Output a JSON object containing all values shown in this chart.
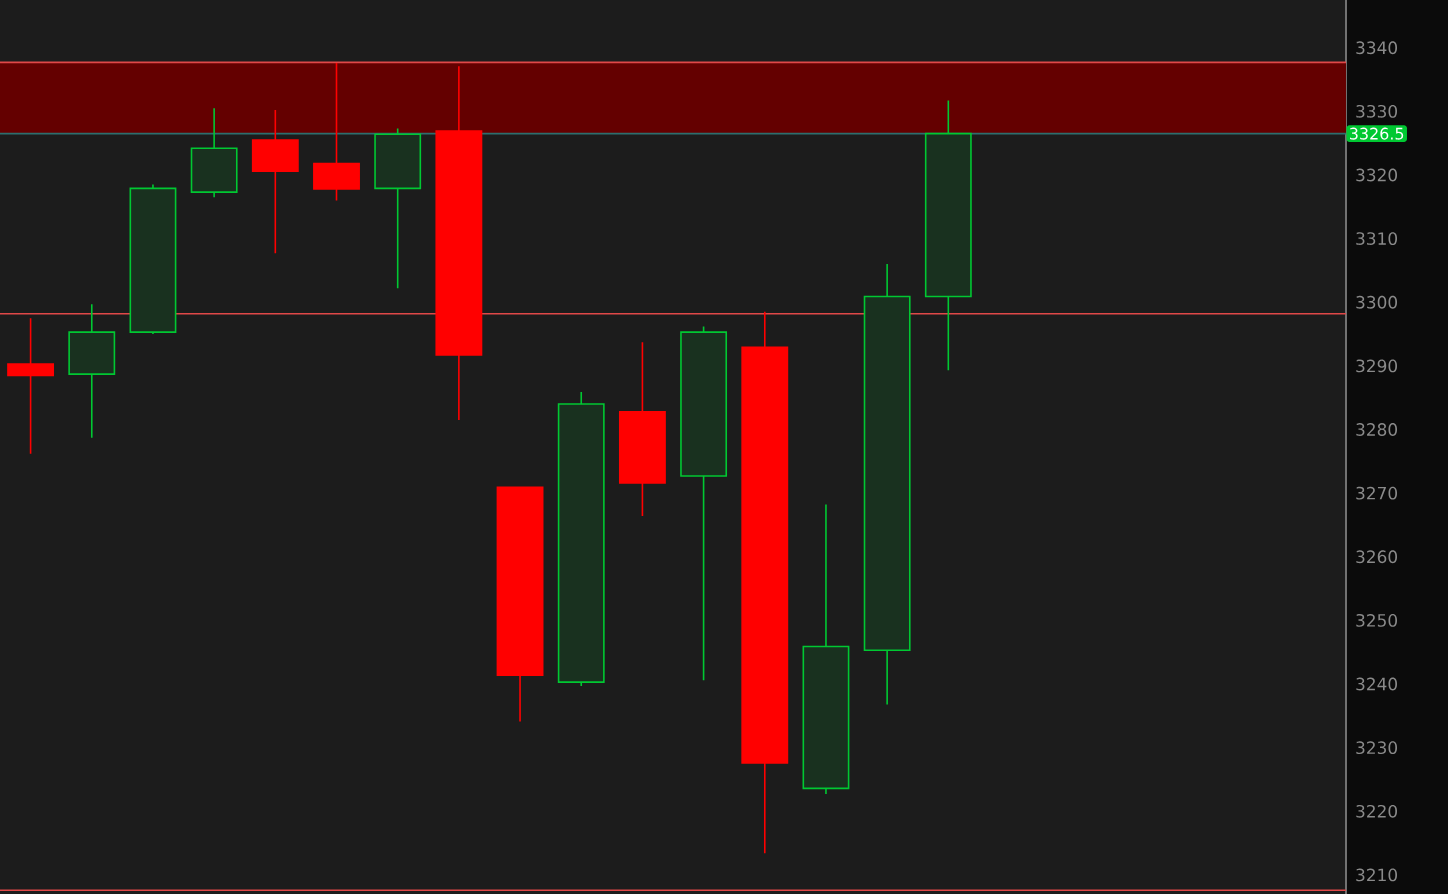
{
  "chart_data": {
    "type": "candlestick",
    "categories": [
      null,
      null,
      null,
      null,
      null,
      null,
      null,
      null,
      null,
      null,
      null,
      null,
      null,
      null,
      null,
      null,
      null,
      null,
      null,
      null,
      null,
      null
    ],
    "ohlc": [
      [
        3290.3,
        3297.5,
        3276.2,
        3288.5
      ],
      [
        3288.7,
        3299.7,
        3278.7,
        3295.3
      ],
      [
        3295.3,
        3318.5,
        3295.0,
        3317.9
      ],
      [
        3317.3,
        3330.5,
        3316.5,
        3324.2
      ],
      [
        3325.5,
        3330.2,
        3307.7,
        3320.6
      ],
      [
        3321.8,
        3337.6,
        3316.0,
        3317.8
      ],
      [
        3317.9,
        3327.3,
        3302.2,
        3326.4
      ],
      [
        3326.9,
        3337.1,
        3281.5,
        3291.7
      ],
      [
        3270.9,
        3270.9,
        3234.1,
        3241.4
      ],
      [
        3240.3,
        3285.9,
        3239.7,
        3284.0
      ],
      [
        3282.8,
        3293.7,
        3266.4,
        3271.6
      ],
      [
        3272.7,
        3296.2,
        3240.6,
        3295.3
      ],
      [
        3292.9,
        3298.5,
        3213.4,
        3227.6
      ],
      [
        3223.6,
        3268.2,
        3222.7,
        3245.9
      ],
      [
        3245.3,
        3306.0,
        3236.8,
        3300.9
      ],
      [
        3300.9,
        3331.7,
        3289.3,
        3326.5
      ],
      null,
      null,
      null,
      null,
      null,
      null
    ],
    "colors": [
      "#ff0000",
      "#00c832",
      "#00c832",
      "#00c832",
      "#ff0000",
      "#ff0000",
      "#00c832",
      "#ff0000",
      "#ff0000",
      "#00c832",
      "#ff0000",
      "#00c832",
      "#ff0000",
      "#00c832",
      "#00c832",
      "#00c832",
      null,
      null,
      null,
      null,
      null,
      null
    ],
    "ylim": [
      3207,
      3347.5
    ],
    "yticks": [
      3210,
      3220,
      3230,
      3240,
      3250,
      3260,
      3270,
      3280,
      3290,
      3300,
      3310,
      3320,
      3330,
      3340
    ],
    "bands": [
      {
        "axis": "y",
        "from": 3326.5,
        "to": 3337.7,
        "color": "#640000"
      }
    ],
    "ref_lines": [
      {
        "axis": "y",
        "value": 3337.7,
        "color": "#e04848"
      },
      {
        "axis": "y",
        "value": 3326.5,
        "label": "3326.5",
        "color": "#2d6e6e"
      },
      {
        "axis": "y",
        "value": 3298.2,
        "color": "#e04848"
      },
      {
        "axis": "y",
        "value": 3207.6,
        "color": "#e04848"
      }
    ],
    "grid": false
  }
}
